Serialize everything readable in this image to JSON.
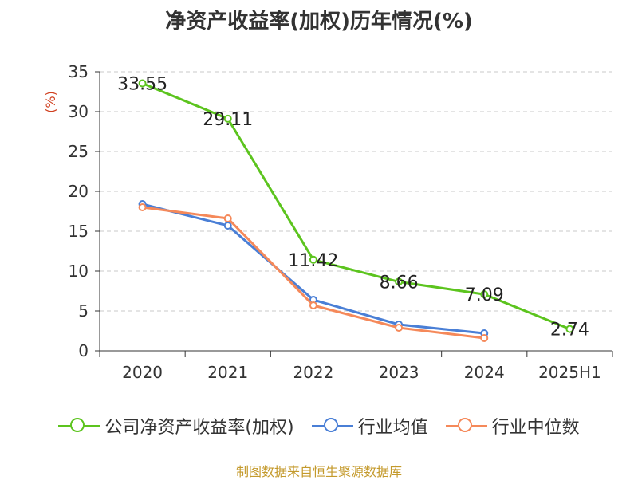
{
  "chart_data": {
    "type": "line",
    "title": "净资产收益率(加权)历年情况(%)",
    "ylabel": "(%)",
    "xlabel": "",
    "categories": [
      "2020",
      "2021",
      "2022",
      "2023",
      "2024",
      "2025H1"
    ],
    "ylim": [
      0,
      35
    ],
    "yticks": [
      0,
      5,
      10,
      15,
      20,
      25,
      30,
      35
    ],
    "grid": true,
    "legend_position": "bottom",
    "series": [
      {
        "name": "公司净资产收益率(加权)",
        "color": "#5cc41e",
        "values": [
          33.55,
          29.11,
          11.42,
          8.66,
          7.09,
          2.74
        ],
        "labels": [
          "33.55",
          "29.11",
          "11.42",
          "8.66",
          "7.09",
          "2.74"
        ]
      },
      {
        "name": "行业均值",
        "color": "#4a7fd6",
        "values": [
          18.4,
          15.7,
          6.4,
          3.3,
          2.2,
          null
        ]
      },
      {
        "name": "行业中位数",
        "color": "#f5895a",
        "values": [
          18.0,
          16.6,
          5.7,
          2.9,
          1.6,
          null
        ]
      }
    ]
  },
  "source_text": "制图数据来自恒生聚源数据库"
}
